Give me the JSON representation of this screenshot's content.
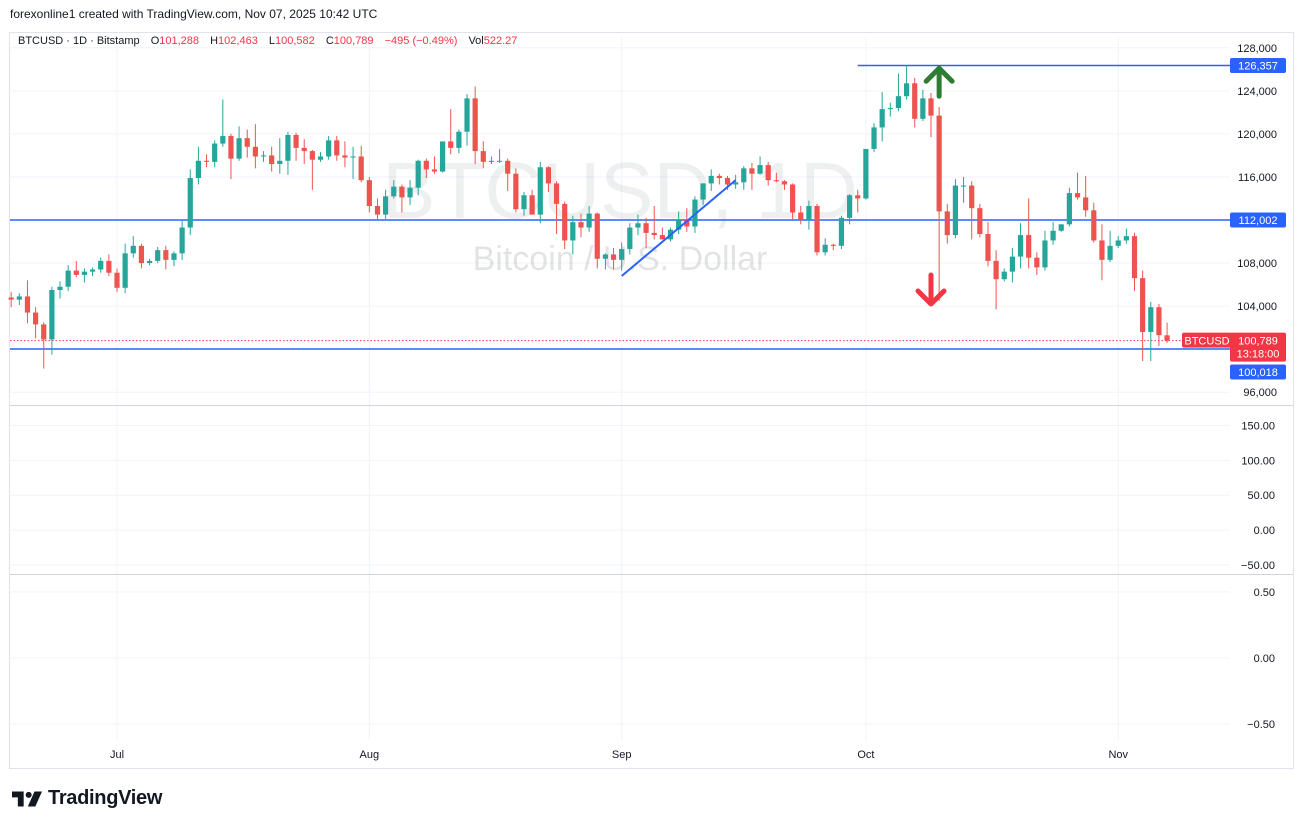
{
  "header": {
    "attribution": "forexonline1 created with TradingView.com, Nov 07, 2025 10:42 UTC"
  },
  "legend": {
    "symbol": "BTCUSD · 1D · Bitstamp",
    "open_label": "O",
    "open": "101,288",
    "high_label": "H",
    "high": "102,463",
    "low_label": "L",
    "low": "100,582",
    "close_label": "C",
    "close": "100,789",
    "change": "−495 (−0.49%)",
    "vol_label": "Vol",
    "vol": "522.27"
  },
  "watermark": {
    "symbol": "BTCUSD, 1D",
    "name": "Bitcoin / U.S. Dollar"
  },
  "colors": {
    "up": "#26a69a",
    "down": "#ef5350",
    "level_line": "#2962ff",
    "trendline": "#2962ff",
    "up_arrow": "#2e7d32",
    "down_arrow": "#f23645",
    "grid": "#f0f3fa",
    "last_price": "#f23645"
  },
  "footer": {
    "brand": "TradingView",
    "logo_icon": "tradingview-logo-icon"
  },
  "chart_data": {
    "type": "candlestick",
    "x_ticks": [
      {
        "label": "Jul",
        "date": "2025-07-01"
      },
      {
        "label": "Aug",
        "date": "2025-08-01"
      },
      {
        "label": "Sep",
        "date": "2025-09-01"
      },
      {
        "label": "Oct",
        "date": "2025-10-01"
      },
      {
        "label": "Nov",
        "date": "2025-11-01"
      }
    ],
    "price_pane": {
      "ylim": [
        95000,
        129000
      ],
      "y_ticks": [
        "128,000",
        "124,000",
        "120,000",
        "116,000",
        "112,000",
        "108,000",
        "104,000",
        "100,000",
        "96,000"
      ],
      "y_tick_values": [
        128000,
        124000,
        120000,
        116000,
        112000,
        108000,
        104000,
        100000,
        96000
      ],
      "horizontal_levels": [
        {
          "value": 126357,
          "label": "126,357",
          "extends": "from early October"
        },
        {
          "value": 112002,
          "label": "112,002",
          "extends": "full width"
        },
        {
          "value": 100018,
          "label": "100,018",
          "extends": "full width"
        }
      ],
      "last_price": {
        "value": 100789,
        "label": "100,789",
        "symbol": "BTCUSD",
        "countdown": "13:18:00"
      },
      "trendline": {
        "from": {
          "date": "2025-09-01",
          "price": 106800
        },
        "to": {
          "date": "2025-09-15",
          "price": 115700
        }
      },
      "annotations": [
        {
          "type": "up-arrow",
          "date": "2025-10-10",
          "price": 124800
        },
        {
          "type": "down-arrow",
          "date": "2025-10-09",
          "price": 105500
        }
      ],
      "candles": [
        [
          "2025-06-18",
          104800,
          105300,
          103900,
          104600
        ],
        [
          "2025-06-19",
          104600,
          105200,
          104100,
          104900
        ],
        [
          "2025-06-20",
          104900,
          106400,
          102400,
          103400
        ],
        [
          "2025-06-21",
          103400,
          103900,
          101000,
          102300
        ],
        [
          "2025-06-22",
          102300,
          102500,
          98200,
          100900
        ],
        [
          "2025-06-23",
          100900,
          105800,
          99500,
          105500
        ],
        [
          "2025-06-24",
          105500,
          106300,
          104700,
          105800
        ],
        [
          "2025-06-25",
          105800,
          107800,
          105400,
          107300
        ],
        [
          "2025-06-26",
          107300,
          108200,
          106700,
          106900
        ],
        [
          "2025-06-27",
          106900,
          107500,
          106200,
          107200
        ],
        [
          "2025-06-28",
          107200,
          107600,
          106800,
          107400
        ],
        [
          "2025-06-29",
          107400,
          108500,
          107100,
          108200
        ],
        [
          "2025-06-30",
          108200,
          108800,
          106800,
          107100
        ],
        [
          "2025-07-01",
          107100,
          107500,
          105300,
          105700
        ],
        [
          "2025-07-02",
          105700,
          109800,
          105200,
          108900
        ],
        [
          "2025-07-03",
          108900,
          110500,
          108500,
          109600
        ],
        [
          "2025-07-04",
          109600,
          109800,
          107500,
          108000
        ],
        [
          "2025-07-05",
          108000,
          108400,
          107800,
          108200
        ],
        [
          "2025-07-06",
          108200,
          109500,
          108000,
          109200
        ],
        [
          "2025-07-07",
          109200,
          109600,
          107400,
          108300
        ],
        [
          "2025-07-08",
          108300,
          109100,
          107700,
          108900
        ],
        [
          "2025-07-09",
          108900,
          111900,
          108300,
          111300
        ],
        [
          "2025-07-10",
          111300,
          116700,
          110600,
          115900
        ],
        [
          "2025-07-11",
          115900,
          118800,
          115300,
          117500
        ],
        [
          "2025-07-12",
          117500,
          118100,
          116900,
          117400
        ],
        [
          "2025-07-13",
          117400,
          119400,
          116900,
          119100
        ],
        [
          "2025-07-14",
          119100,
          123200,
          118800,
          119800
        ],
        [
          "2025-07-15",
          119800,
          120000,
          115800,
          117700
        ],
        [
          "2025-07-16",
          117700,
          120700,
          117500,
          119600
        ],
        [
          "2025-07-17",
          119600,
          120400,
          117800,
          118800
        ],
        [
          "2025-07-18",
          118800,
          120900,
          116800,
          117900
        ],
        [
          "2025-07-19",
          117900,
          118400,
          117400,
          118000
        ],
        [
          "2025-07-20",
          118000,
          118800,
          116500,
          117200
        ],
        [
          "2025-07-21",
          117200,
          119600,
          116300,
          117500
        ],
        [
          "2025-07-22",
          117500,
          120200,
          116200,
          119900
        ],
        [
          "2025-07-23",
          119900,
          120100,
          117500,
          118700
        ],
        [
          "2025-07-24",
          118700,
          119500,
          117200,
          118400
        ],
        [
          "2025-07-25",
          118400,
          118500,
          114800,
          117600
        ],
        [
          "2025-07-26",
          117600,
          118300,
          117400,
          117900
        ],
        [
          "2025-07-27",
          117900,
          119800,
          117600,
          119400
        ],
        [
          "2025-07-28",
          119400,
          119800,
          117500,
          118000
        ],
        [
          "2025-07-29",
          118000,
          119300,
          116900,
          117800
        ],
        [
          "2025-07-30",
          117800,
          118800,
          115800,
          117900
        ],
        [
          "2025-07-31",
          117900,
          118900,
          115500,
          115700
        ],
        [
          "2025-08-01",
          115700,
          116000,
          112700,
          113300
        ],
        [
          "2025-08-02",
          113300,
          114000,
          112000,
          112500
        ],
        [
          "2025-08-03",
          112500,
          114800,
          112100,
          114200
        ],
        [
          "2025-08-04",
          114200,
          115700,
          114000,
          115100
        ],
        [
          "2025-08-05",
          115100,
          115300,
          112700,
          114100
        ],
        [
          "2025-08-06",
          114100,
          115700,
          113400,
          115000
        ],
        [
          "2025-08-07",
          115000,
          117600,
          114300,
          117500
        ],
        [
          "2025-08-08",
          117500,
          117700,
          115900,
          116700
        ],
        [
          "2025-08-09",
          116700,
          117900,
          116300,
          116500
        ],
        [
          "2025-08-10",
          116500,
          119200,
          116400,
          119300
        ],
        [
          "2025-08-11",
          119300,
          122300,
          118100,
          118700
        ],
        [
          "2025-08-12",
          118700,
          120400,
          118200,
          120200
        ],
        [
          "2025-08-13",
          120200,
          123700,
          118900,
          123300
        ],
        [
          "2025-08-14",
          123300,
          124400,
          117200,
          118400
        ],
        [
          "2025-08-15",
          118400,
          119300,
          116800,
          117400
        ],
        [
          "2025-08-16",
          117400,
          117900,
          117200,
          117500
        ],
        [
          "2025-08-17",
          117500,
          118600,
          117300,
          117500
        ],
        [
          "2025-08-18",
          117500,
          117700,
          114700,
          116300
        ],
        [
          "2025-08-19",
          116300,
          116800,
          112700,
          113000
        ],
        [
          "2025-08-20",
          113000,
          114600,
          112400,
          114300
        ],
        [
          "2025-08-21",
          114300,
          114800,
          112600,
          112500
        ],
        [
          "2025-08-22",
          112500,
          117400,
          111700,
          116900
        ],
        [
          "2025-08-23",
          116900,
          117000,
          114600,
          115400
        ],
        [
          "2025-08-24",
          115400,
          115600,
          110700,
          113500
        ],
        [
          "2025-08-25",
          113500,
          113700,
          109300,
          110100
        ],
        [
          "2025-08-26",
          110100,
          112400,
          108800,
          111800
        ],
        [
          "2025-08-27",
          111800,
          112600,
          110400,
          111300
        ],
        [
          "2025-08-28",
          111300,
          113300,
          110900,
          112600
        ],
        [
          "2025-08-29",
          112600,
          112700,
          107500,
          108400
        ],
        [
          "2025-08-30",
          108400,
          108900,
          107400,
          108800
        ],
        [
          "2025-08-31",
          108800,
          109400,
          107400,
          108300
        ],
        [
          "2025-09-01",
          108300,
          109900,
          107300,
          109300
        ],
        [
          "2025-09-02",
          109300,
          111700,
          108800,
          111300
        ],
        [
          "2025-09-03",
          111300,
          112500,
          110600,
          111700
        ],
        [
          "2025-09-04",
          111700,
          112200,
          109400,
          110800
        ],
        [
          "2025-09-05",
          110800,
          113300,
          110200,
          110600
        ],
        [
          "2025-09-06",
          110600,
          111300,
          110200,
          110200
        ],
        [
          "2025-09-07",
          110200,
          111300,
          110000,
          111100
        ],
        [
          "2025-09-08",
          111100,
          112800,
          110700,
          112000
        ],
        [
          "2025-09-09",
          112000,
          113100,
          110900,
          111400
        ],
        [
          "2025-09-10",
          111400,
          114200,
          110800,
          113900
        ],
        [
          "2025-09-11",
          113900,
          115400,
          113400,
          115400
        ],
        [
          "2025-09-12",
          115400,
          116700,
          114700,
          116100
        ],
        [
          "2025-09-13",
          116100,
          116300,
          115300,
          115900
        ],
        [
          "2025-09-14",
          115900,
          116100,
          114800,
          115300
        ],
        [
          "2025-09-15",
          115300,
          116200,
          114900,
          115500
        ],
        [
          "2025-09-16",
          115500,
          117000,
          114800,
          116800
        ],
        [
          "2025-09-17",
          116800,
          117300,
          114800,
          116300
        ],
        [
          "2025-09-18",
          116300,
          117900,
          116200,
          117100
        ],
        [
          "2025-09-19",
          117100,
          117400,
          115200,
          115700
        ],
        [
          "2025-09-20",
          115700,
          116400,
          115500,
          115600
        ],
        [
          "2025-09-21",
          115600,
          115700,
          114800,
          115300
        ],
        [
          "2025-09-22",
          115300,
          115400,
          112000,
          112700
        ],
        [
          "2025-09-23",
          112700,
          113300,
          111600,
          112000
        ],
        [
          "2025-09-24",
          112000,
          113800,
          111100,
          113300
        ],
        [
          "2025-09-25",
          113300,
          113500,
          108700,
          109000
        ],
        [
          "2025-09-26",
          109000,
          110300,
          108700,
          109700
        ],
        [
          "2025-09-27",
          109700,
          109800,
          109200,
          109600
        ],
        [
          "2025-09-28",
          109600,
          112400,
          109300,
          112200
        ],
        [
          "2025-09-29",
          112200,
          114400,
          111600,
          114300
        ],
        [
          "2025-09-30",
          114300,
          114800,
          112700,
          114000
        ],
        [
          "2025-10-01",
          114000,
          118600,
          113900,
          118600
        ],
        [
          "2025-10-02",
          118600,
          121000,
          118300,
          120600
        ],
        [
          "2025-10-03",
          120600,
          123900,
          119300,
          122300
        ],
        [
          "2025-10-04",
          122300,
          122900,
          121600,
          122400
        ],
        [
          "2025-10-05",
          122400,
          125600,
          122100,
          123500
        ],
        [
          "2025-10-06",
          123500,
          126357,
          123200,
          124700
        ],
        [
          "2025-10-07",
          124700,
          125200,
          120600,
          121400
        ],
        [
          "2025-10-08",
          121400,
          124100,
          121200,
          123300
        ],
        [
          "2025-10-09",
          123300,
          123800,
          119700,
          121700
        ],
        [
          "2025-10-10",
          121700,
          122500,
          104500,
          112800
        ],
        [
          "2025-10-11",
          112800,
          113500,
          109800,
          110600
        ],
        [
          "2025-10-12",
          110600,
          115800,
          110300,
          115200
        ],
        [
          "2025-10-13",
          115200,
          116000,
          113600,
          115200
        ],
        [
          "2025-10-14",
          115200,
          115600,
          110200,
          113100
        ],
        [
          "2025-10-15",
          113100,
          113500,
          110400,
          110700
        ],
        [
          "2025-10-16",
          110700,
          111800,
          107700,
          108200
        ],
        [
          "2025-10-17",
          108200,
          109200,
          103700,
          106500
        ],
        [
          "2025-10-18",
          106500,
          107500,
          106300,
          107200
        ],
        [
          "2025-10-19",
          107200,
          109400,
          106200,
          108600
        ],
        [
          "2025-10-20",
          108600,
          111700,
          107500,
          110600
        ],
        [
          "2025-10-21",
          110600,
          114000,
          107500,
          108500
        ],
        [
          "2025-10-22",
          108500,
          109000,
          106900,
          107600
        ],
        [
          "2025-10-23",
          107600,
          111000,
          107300,
          110100
        ],
        [
          "2025-10-24",
          110100,
          111800,
          109700,
          111000
        ],
        [
          "2025-10-25",
          111000,
          111600,
          110900,
          111600
        ],
        [
          "2025-10-26",
          111600,
          115000,
          111400,
          114500
        ],
        [
          "2025-10-27",
          114500,
          116400,
          113900,
          114100
        ],
        [
          "2025-10-28",
          114100,
          116100,
          112300,
          112900
        ],
        [
          "2025-10-29",
          112900,
          113600,
          109900,
          110100
        ],
        [
          "2025-10-30",
          110100,
          111600,
          106400,
          108300
        ],
        [
          "2025-10-31",
          108300,
          111000,
          108100,
          109600
        ],
        [
          "2025-11-01",
          109600,
          110500,
          109400,
          110100
        ],
        [
          "2025-11-02",
          110100,
          111200,
          109800,
          110500
        ],
        [
          "2025-11-03",
          110500,
          110800,
          105400,
          106600
        ],
        [
          "2025-11-04",
          106600,
          107300,
          98900,
          101600
        ],
        [
          "2025-11-05",
          101600,
          104400,
          98900,
          103900
        ],
        [
          "2025-11-06",
          103900,
          104200,
          100300,
          101300
        ],
        [
          "2025-11-07",
          101288,
          102463,
          100582,
          100789
        ]
      ]
    },
    "oscillator_pane_1": {
      "y_ticks": [
        "150.00",
        "100.00",
        "50.00",
        "0.00",
        "−50.00"
      ],
      "y_tick_values": [
        150,
        100,
        50,
        0,
        -50
      ],
      "ylim": [
        -60,
        175
      ],
      "series": []
    },
    "oscillator_pane_2": {
      "y_ticks": [
        "0.50",
        "0.00",
        "−0.50"
      ],
      "y_tick_values": [
        0.5,
        0,
        -0.5
      ],
      "ylim": [
        -0.62,
        0.62
      ],
      "series": []
    }
  }
}
